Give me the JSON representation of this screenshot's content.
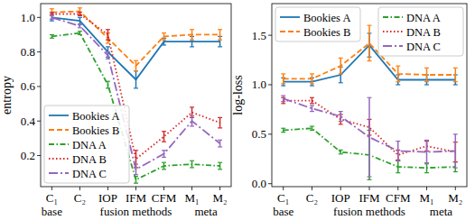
{
  "chart_data": [
    {
      "type": "line",
      "y_label": "entropy",
      "categories": [
        "C₁",
        "C₂",
        "IOP",
        "IFM",
        "CFM",
        "M₁",
        "M₂"
      ],
      "annotations": [
        {
          "text": "base",
          "x": 0
        },
        {
          "text": "fusion methods",
          "x": 3
        },
        {
          "text": "meta",
          "x": 5.5
        }
      ],
      "ylim": [
        0.02,
        1.08
      ],
      "yticks": [
        0.2,
        0.4,
        0.6,
        0.8,
        {
          "value": 1,
          "label": "1.0"
        }
      ],
      "grid": false,
      "legend": "lower left",
      "series": [
        {
          "name": "Bookies A",
          "color": "#1f77b4",
          "line_style": "solid",
          "values": [
            1.0,
            0.98,
            0.8,
            0.64,
            0.86,
            0.86,
            0.86
          ],
          "errors": [
            0.02,
            0.02,
            0.03,
            0.05,
            0.02,
            0.03,
            0.03
          ]
        },
        {
          "name": "Bookies B",
          "color": "#ff7f0e",
          "line_style": "dashed",
          "values": [
            1.03,
            1.035,
            0.88,
            0.72,
            0.89,
            0.9,
            0.9
          ],
          "errors": [
            0.02,
            0.02,
            0.03,
            0.03,
            0.02,
            0.03,
            0.03
          ]
        },
        {
          "name": "DNA A",
          "color": "#2ca02c",
          "line_style": "dashdot",
          "values": [
            0.89,
            0.91,
            0.61,
            0.06,
            0.14,
            0.15,
            0.14
          ],
          "errors": [
            0.01,
            0.01,
            0.02,
            0.02,
            0.02,
            0.02,
            0.02
          ]
        },
        {
          "name": "DNA B",
          "color": "#d62728",
          "line_style": "dotted",
          "values": [
            1.02,
            1.02,
            0.9,
            0.18,
            0.31,
            0.45,
            0.39
          ],
          "errors": [
            0.01,
            0.01,
            0.03,
            0.05,
            0.03,
            0.03,
            0.03
          ]
        },
        {
          "name": "DNA C",
          "color": "#9467bd",
          "line_style": "longdashdot",
          "values": [
            1.0,
            0.95,
            0.78,
            0.12,
            0.21,
            0.4,
            0.27
          ],
          "errors": [
            0.01,
            0.01,
            0.02,
            0.03,
            0.02,
            0.03,
            0.02
          ]
        }
      ]
    },
    {
      "type": "line",
      "y_label": "log-loss",
      "categories": [
        "C₁",
        "C₂",
        "IOP",
        "IFM",
        "CFM",
        "M₁",
        "M₂"
      ],
      "annotations": [
        {
          "text": "base",
          "x": 0
        },
        {
          "text": "fusion methods",
          "x": 3
        },
        {
          "text": "meta",
          "x": 5.5
        }
      ],
      "ylim": [
        -0.03,
        1.82
      ],
      "yticks": [
        {
          "value": 0,
          "label": "0.0"
        },
        0.5,
        {
          "value": 1,
          "label": "1.0"
        },
        1.5
      ],
      "grid": false,
      "legend": "upper",
      "series": [
        {
          "name": "Bookies A",
          "color": "#1f77b4",
          "line_style": "solid",
          "values": [
            1.03,
            1.03,
            1.1,
            1.4,
            1.05,
            1.05,
            1.05
          ],
          "errors": [
            0.04,
            0.04,
            0.08,
            0.12,
            0.05,
            0.05,
            0.05
          ]
        },
        {
          "name": "Bookies B",
          "color": "#ff7f0e",
          "line_style": "dashed",
          "values": [
            1.06,
            1.06,
            1.19,
            1.42,
            1.11,
            1.1,
            1.1
          ],
          "errors": [
            0.05,
            0.05,
            0.08,
            0.18,
            0.08,
            0.07,
            0.07
          ]
        },
        {
          "name": "DNA A",
          "color": "#2ca02c",
          "line_style": "dashdot",
          "values": [
            0.54,
            0.56,
            0.32,
            0.29,
            0.17,
            0.16,
            0.17
          ],
          "errors": [
            0.02,
            0.02,
            0.02,
            0.25,
            0.06,
            0.05,
            0.05
          ]
        },
        {
          "name": "DNA B",
          "color": "#d62728",
          "line_style": "dotted",
          "values": [
            0.84,
            0.84,
            0.65,
            0.57,
            0.29,
            0.38,
            0.32
          ],
          "errors": [
            0.03,
            0.03,
            0.05,
            0.08,
            0.05,
            0.05,
            0.1
          ]
        },
        {
          "name": "DNA C",
          "color": "#9467bd",
          "line_style": "longdashdot",
          "values": [
            0.86,
            0.76,
            0.68,
            0.47,
            0.33,
            0.32,
            0.33
          ],
          "errors": [
            0.03,
            0.03,
            0.05,
            0.4,
            0.1,
            0.12,
            0.17
          ]
        }
      ]
    }
  ]
}
